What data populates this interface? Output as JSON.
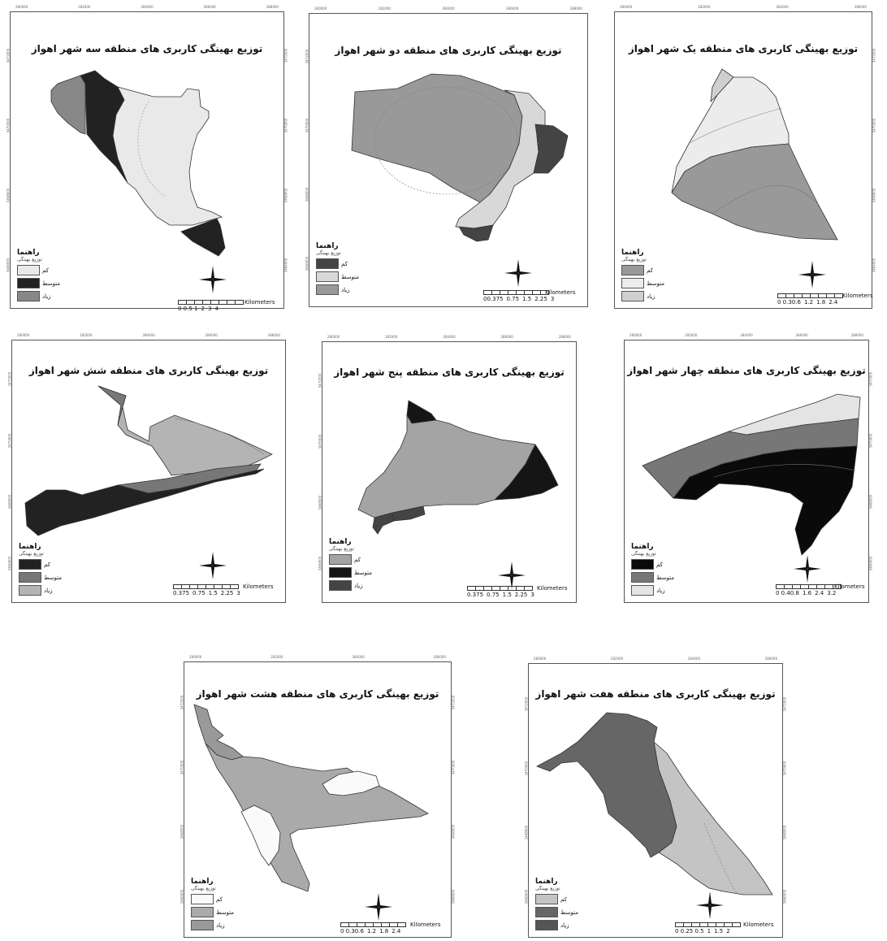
{
  "legend": {
    "title": "راهنما",
    "subtitle": "توزیع بهینگی",
    "classes": {
      "low": "کم",
      "medium": "متوسط",
      "high": "زیاد"
    }
  },
  "scale_unit": "Kilometers",
  "colors": {
    "light": "#ececec",
    "lighter": "#f8f8f8",
    "mid_light": "#d4d4d4",
    "mid": "#a9a9a9",
    "mid_dark": "#8a8a8a",
    "dark": "#5a5a5a",
    "darkest": "#2a2a2a",
    "black": "#111111"
  },
  "coordinate_labels": {
    "top": [
      "280000",
      "282000",
      "284000",
      "286000",
      "288000",
      "290000"
    ],
    "side": [
      "3472000",
      "3470000",
      "3468000",
      "3466000",
      "3464000"
    ]
  },
  "maps": [
    {
      "id": "zone3",
      "title": "توزیع بهینگی کاربری های منطقه سه شهر اهواز",
      "scale_ticks": [
        "0 0.5 1",
        "2",
        "3",
        "4"
      ],
      "legend_swatches": [
        "#e9e9e9",
        "#222222",
        "#888888"
      ]
    },
    {
      "id": "zone2",
      "title": "توزیع بهینگی کاربری های منطقه دو شهر اهواز",
      "scale_ticks": [
        "00.375",
        "0.75",
        "1.5",
        "2.25",
        "3"
      ],
      "legend_swatches": [
        "#444444",
        "#d8d8d8",
        "#999999"
      ]
    },
    {
      "id": "zone1",
      "title": "توزیع بهینگی کاربری های منطقه یک شهر اهواز",
      "scale_ticks": [
        "0 0.30.6",
        "1.2",
        "1.8",
        "2.4"
      ],
      "legend_swatches": [
        "#999999",
        "#ececec",
        "#cfcfcf"
      ]
    },
    {
      "id": "zone6",
      "title": "توزیع بهینگی کاربری های منطقه شش شهر اهواز",
      "scale_ticks": [
        "0.375",
        "0.75",
        "1.5",
        "2.25",
        "3"
      ],
      "legend_swatches": [
        "#222222",
        "#777777",
        "#b4b4b4"
      ]
    },
    {
      "id": "zone5",
      "title": "توزیع بهینگی کاربری های منطقه پنج شهر اهواز",
      "scale_ticks": [
        "0.375",
        "0.75",
        "1.5",
        "2.25",
        "3"
      ],
      "legend_swatches": [
        "#a4a4a4",
        "#151515",
        "#444444"
      ]
    },
    {
      "id": "zone4",
      "title": "توزیع بهینگی کاربری های منطقه چهار شهر اهواز",
      "scale_ticks": [
        "0 0.40.8",
        "1.6",
        "2.4",
        "3.2"
      ],
      "legend_swatches": [
        "#0a0a0a",
        "#777777",
        "#e4e4e4"
      ]
    },
    {
      "id": "zone8",
      "title": "توزیع بهینگی کاربری های منطقه هشت شهر اهواز",
      "scale_ticks": [
        "0 0.30.6",
        "1.2",
        "1.8",
        "2.4"
      ],
      "legend_swatches": [
        "#fafafa",
        "#aaaaaa",
        "#999999"
      ]
    },
    {
      "id": "zone7",
      "title": "توزیع بهینگی کاربری های منطقه هفت شهر اهواز",
      "scale_ticks": [
        "0 0.25 0.5",
        "1",
        "1.5",
        "2"
      ],
      "legend_swatches": [
        "#c4c4c4",
        "#666666",
        "#555555"
      ]
    }
  ]
}
